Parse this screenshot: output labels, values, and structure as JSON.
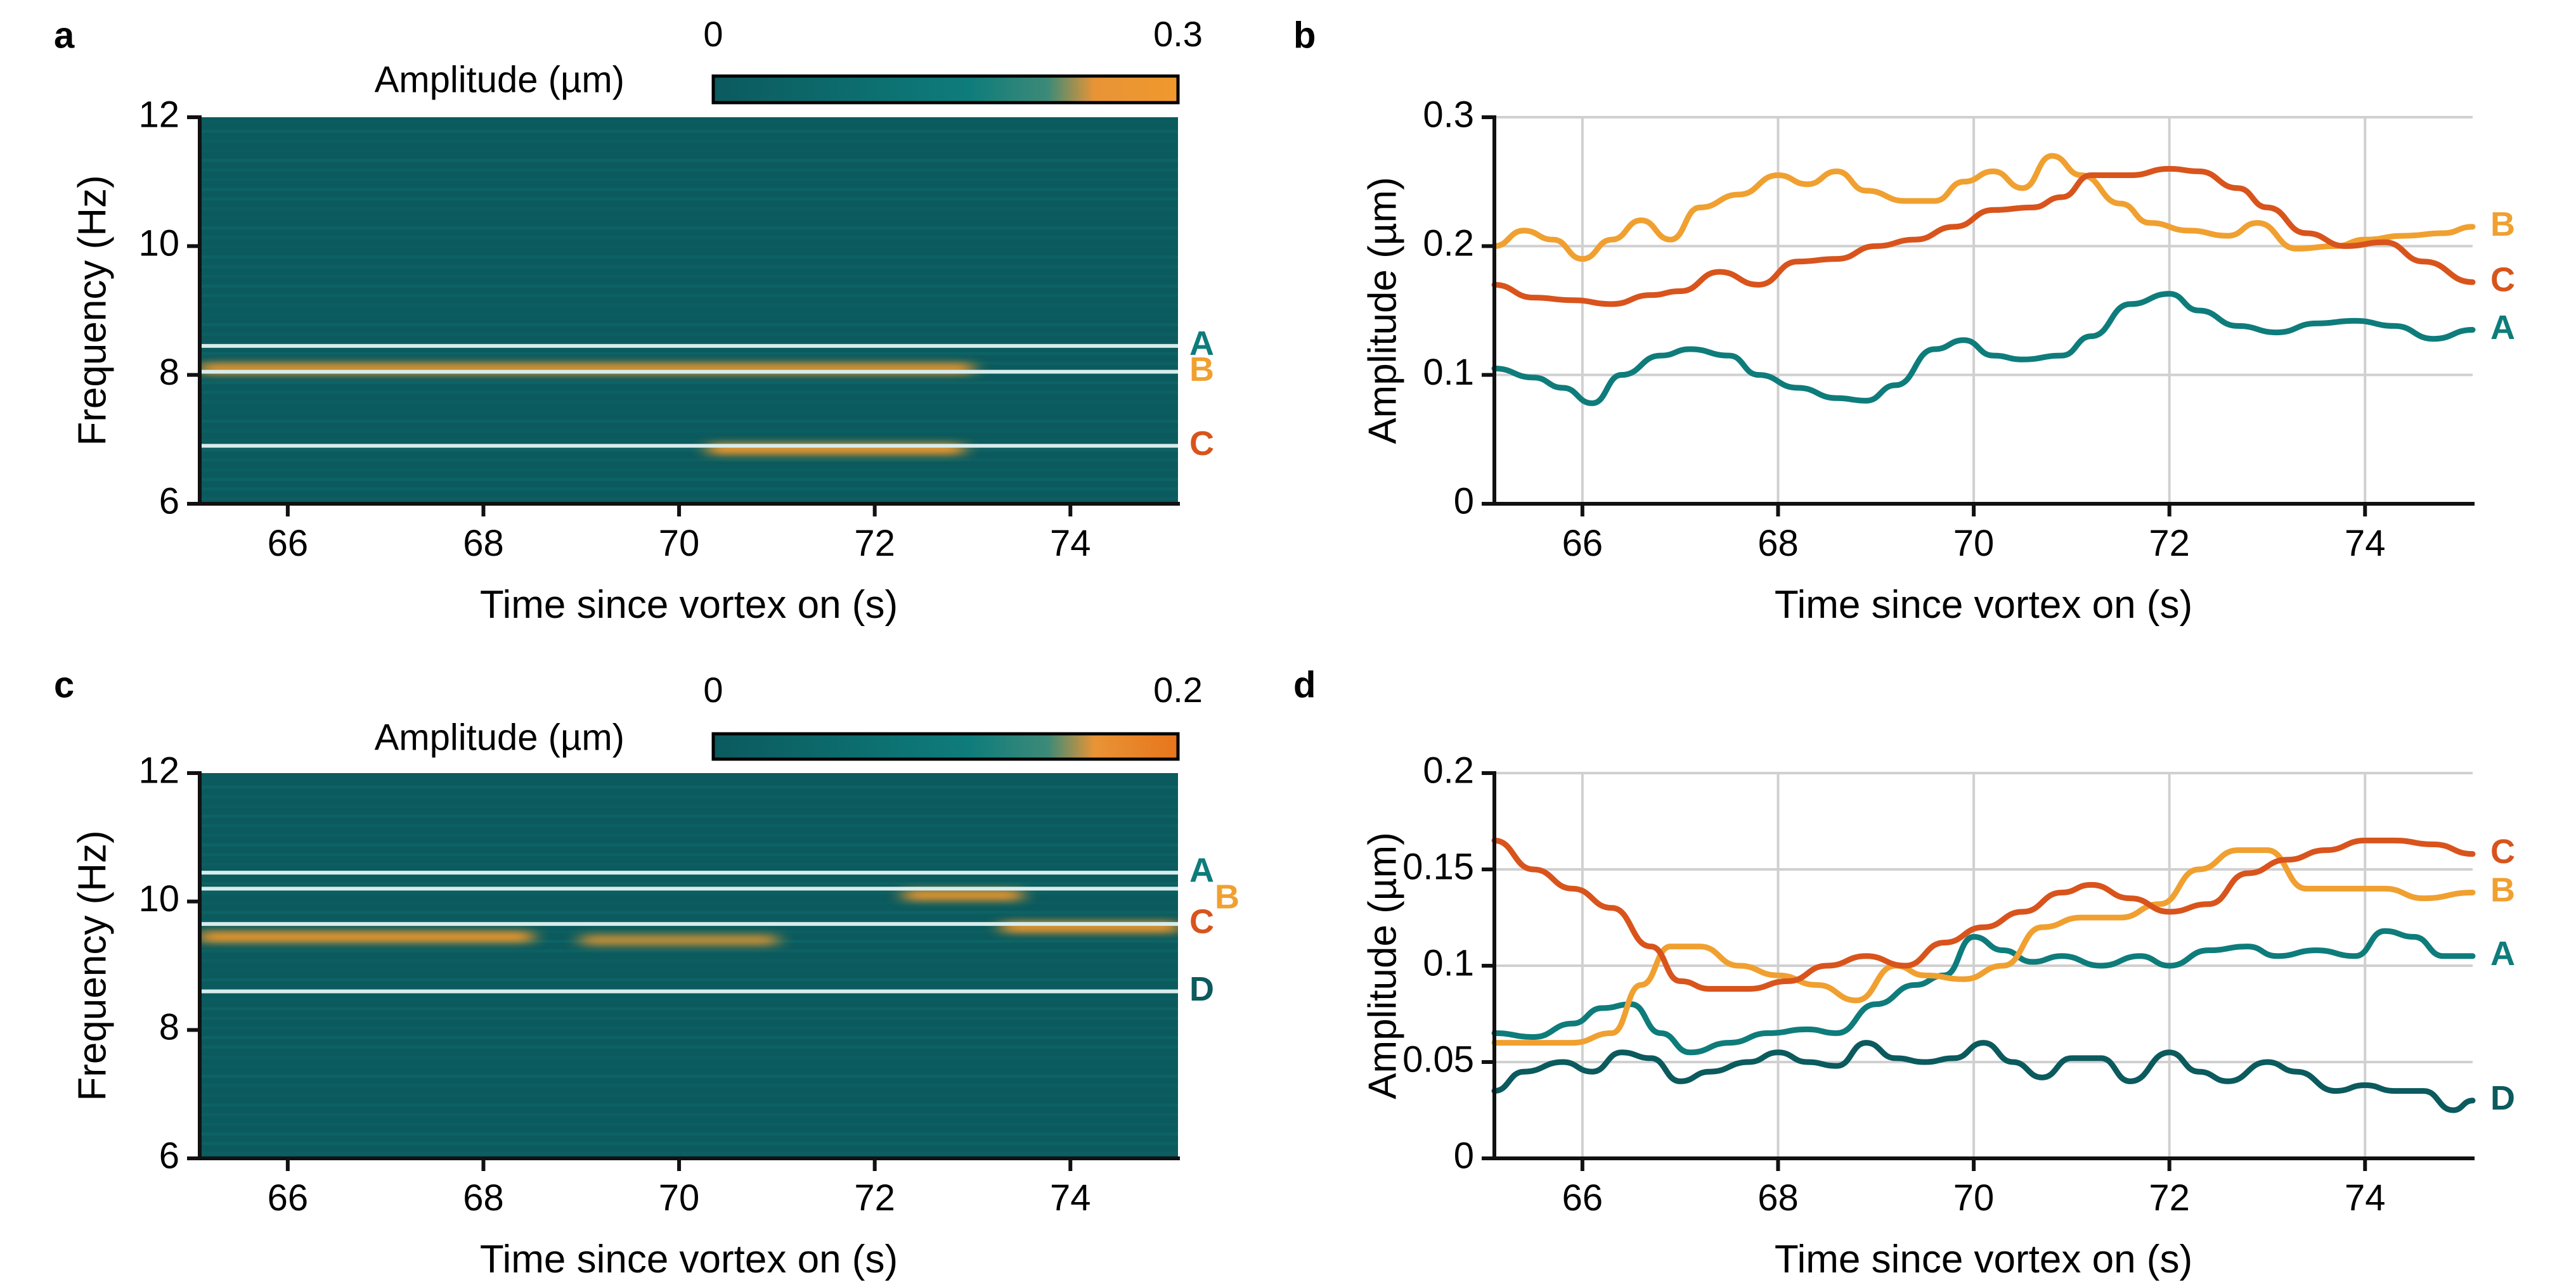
{
  "colors": {
    "teal": "#0e7c7b",
    "dark_teal": "#0b5a5e",
    "orange": "#f0a030",
    "red_orange": "#d8541c",
    "map_base": "#0b5a5e",
    "map_hot": "#f0982c",
    "map_hot2": "#e8751c",
    "grid": "#d0d0d0",
    "axis": "#111111",
    "line_marker": "#d8ecec"
  },
  "chart_data": [
    {
      "panel": "a",
      "type": "heatmap",
      "colorbar": {
        "label": "Amplitude (µm)",
        "min": 0,
        "max": 0.3,
        "min_label": "0",
        "max_label": "0.3"
      },
      "xlabel": "Time since vortex on (s)",
      "ylabel": "Frequency (Hz)",
      "xlim": [
        65.1,
        75.1
      ],
      "ylim": [
        6,
        12
      ],
      "xticks": [
        66,
        68,
        70,
        72,
        74
      ],
      "yticks": [
        6,
        8,
        10,
        12
      ],
      "markers": [
        {
          "label": "A",
          "freq": 8.45,
          "color": "teal"
        },
        {
          "label": "B",
          "freq": 8.05,
          "color": "orange"
        },
        {
          "label": "C",
          "freq": 6.9,
          "color": "red_orange"
        }
      ],
      "hot_bands": [
        {
          "freq": 8.1,
          "t_start": 65.1,
          "t_end": 73.0,
          "amplitude": 0.22
        },
        {
          "freq": 6.85,
          "t_start": 70.3,
          "t_end": 72.9,
          "amplitude": 0.25
        }
      ]
    },
    {
      "panel": "b",
      "type": "line",
      "xlabel": "Time since vortex on (s)",
      "ylabel": "Amplitude (µm)",
      "xlim": [
        65.1,
        75.1
      ],
      "ylim": [
        0,
        0.3
      ],
      "xticks": [
        66,
        68,
        70,
        72,
        74
      ],
      "yticks": [
        0,
        0.1,
        0.2,
        0.3
      ],
      "ytick_labels": [
        "0",
        "0.1",
        "0.2",
        "0.3"
      ],
      "series": [
        {
          "name": "A",
          "color": "teal",
          "x": [
            65.1,
            65.5,
            65.8,
            66.1,
            66.4,
            66.8,
            67.1,
            67.5,
            67.8,
            68.2,
            68.6,
            68.9,
            69.2,
            69.6,
            69.9,
            70.2,
            70.5,
            70.9,
            71.2,
            71.6,
            72.0,
            72.3,
            72.7,
            73.1,
            73.5,
            73.9,
            74.3,
            74.7,
            75.1
          ],
          "y": [
            0.105,
            0.098,
            0.09,
            0.078,
            0.1,
            0.115,
            0.12,
            0.115,
            0.1,
            0.09,
            0.082,
            0.08,
            0.092,
            0.12,
            0.127,
            0.115,
            0.112,
            0.115,
            0.13,
            0.155,
            0.163,
            0.15,
            0.138,
            0.133,
            0.14,
            0.142,
            0.138,
            0.128,
            0.135
          ]
        },
        {
          "name": "B",
          "color": "orange",
          "x": [
            65.1,
            65.4,
            65.7,
            66.0,
            66.3,
            66.6,
            66.9,
            67.2,
            67.6,
            68.0,
            68.3,
            68.6,
            68.9,
            69.3,
            69.6,
            69.9,
            70.2,
            70.5,
            70.8,
            71.1,
            71.5,
            71.8,
            72.2,
            72.6,
            72.9,
            73.3,
            73.7,
            74.0,
            74.4,
            74.8,
            75.1
          ],
          "y": [
            0.2,
            0.212,
            0.205,
            0.19,
            0.205,
            0.22,
            0.205,
            0.23,
            0.24,
            0.255,
            0.248,
            0.258,
            0.243,
            0.235,
            0.235,
            0.25,
            0.258,
            0.245,
            0.27,
            0.255,
            0.233,
            0.218,
            0.212,
            0.208,
            0.218,
            0.198,
            0.2,
            0.205,
            0.208,
            0.21,
            0.215
          ]
        },
        {
          "name": "C",
          "color": "red_orange",
          "x": [
            65.1,
            65.5,
            65.9,
            66.3,
            66.7,
            67.0,
            67.4,
            67.8,
            68.2,
            68.6,
            69.0,
            69.4,
            69.8,
            70.2,
            70.6,
            70.9,
            71.2,
            71.6,
            72.0,
            72.3,
            72.7,
            73.0,
            73.4,
            73.8,
            74.2,
            74.6,
            75.1
          ],
          "y": [
            0.17,
            0.16,
            0.158,
            0.155,
            0.162,
            0.165,
            0.18,
            0.17,
            0.188,
            0.19,
            0.2,
            0.205,
            0.215,
            0.228,
            0.23,
            0.238,
            0.255,
            0.255,
            0.26,
            0.258,
            0.245,
            0.23,
            0.21,
            0.2,
            0.203,
            0.188,
            0.172
          ]
        }
      ]
    },
    {
      "panel": "c",
      "type": "heatmap",
      "colorbar": {
        "label": "Amplitude (µm)",
        "min": 0,
        "max": 0.2,
        "min_label": "0",
        "max_label": "0.2"
      },
      "xlabel": "Time since vortex on (s)",
      "ylabel": "Frequency (Hz)",
      "xlim": [
        65.1,
        75.1
      ],
      "ylim": [
        6,
        12
      ],
      "xticks": [
        66,
        68,
        70,
        72,
        74
      ],
      "yticks": [
        6,
        8,
        10,
        12
      ],
      "markers": [
        {
          "label": "A",
          "freq": 10.45,
          "color": "teal"
        },
        {
          "label": "B",
          "freq": 10.2,
          "color": "orange"
        },
        {
          "label": "C",
          "freq": 9.65,
          "color": "red_orange"
        },
        {
          "label": "D",
          "freq": 8.6,
          "color": "dark_teal"
        }
      ],
      "hot_bands": [
        {
          "freq": 9.45,
          "t_start": 65.1,
          "t_end": 68.5,
          "amplitude": 0.16
        },
        {
          "freq": 9.4,
          "t_start": 69.0,
          "t_end": 71.0,
          "amplitude": 0.1
        },
        {
          "freq": 10.1,
          "t_start": 72.3,
          "t_end": 73.5,
          "amplitude": 0.15
        },
        {
          "freq": 9.6,
          "t_start": 73.3,
          "t_end": 75.1,
          "amplitude": 0.16
        }
      ]
    },
    {
      "panel": "d",
      "type": "line",
      "xlabel": "Time since vortex on (s)",
      "ylabel": "Amplitude (µm)",
      "xlim": [
        65.1,
        75.1
      ],
      "ylim": [
        0,
        0.2
      ],
      "xticks": [
        66,
        68,
        70,
        72,
        74
      ],
      "yticks": [
        0,
        0.05,
        0.1,
        0.15,
        0.2
      ],
      "ytick_labels": [
        "0",
        "0.05",
        "0.1",
        "0.15",
        "0.2"
      ],
      "series": [
        {
          "name": "A",
          "color": "teal",
          "x": [
            65.1,
            65.5,
            65.9,
            66.2,
            66.5,
            66.8,
            67.1,
            67.5,
            67.9,
            68.3,
            68.6,
            69.0,
            69.4,
            69.7,
            70.0,
            70.3,
            70.6,
            70.9,
            71.3,
            71.7,
            72.0,
            72.4,
            72.8,
            73.1,
            73.5,
            73.9,
            74.2,
            74.5,
            74.8,
            75.1
          ],
          "y": [
            0.065,
            0.063,
            0.07,
            0.078,
            0.08,
            0.065,
            0.055,
            0.06,
            0.065,
            0.067,
            0.065,
            0.08,
            0.09,
            0.095,
            0.115,
            0.108,
            0.102,
            0.105,
            0.1,
            0.105,
            0.1,
            0.108,
            0.11,
            0.105,
            0.108,
            0.105,
            0.118,
            0.115,
            0.105,
            0.105
          ]
        },
        {
          "name": "B",
          "color": "orange",
          "x": [
            65.1,
            65.5,
            65.9,
            66.3,
            66.6,
            66.9,
            67.2,
            67.6,
            68.0,
            68.4,
            68.8,
            69.2,
            69.5,
            69.9,
            70.3,
            70.7,
            71.1,
            71.5,
            71.9,
            72.3,
            72.7,
            73.0,
            73.4,
            73.8,
            74.2,
            74.6,
            75.1
          ],
          "y": [
            0.06,
            0.06,
            0.06,
            0.065,
            0.09,
            0.11,
            0.11,
            0.1,
            0.095,
            0.09,
            0.082,
            0.1,
            0.095,
            0.093,
            0.1,
            0.12,
            0.125,
            0.125,
            0.132,
            0.15,
            0.16,
            0.16,
            0.14,
            0.14,
            0.14,
            0.135,
            0.138
          ]
        },
        {
          "name": "C",
          "color": "red_orange",
          "x": [
            65.1,
            65.5,
            65.9,
            66.3,
            66.7,
            67.0,
            67.3,
            67.7,
            68.1,
            68.5,
            68.9,
            69.3,
            69.7,
            70.1,
            70.5,
            70.9,
            71.2,
            71.6,
            72.0,
            72.4,
            72.8,
            73.2,
            73.6,
            74.0,
            74.3,
            74.7,
            75.1
          ],
          "y": [
            0.165,
            0.15,
            0.14,
            0.13,
            0.11,
            0.092,
            0.088,
            0.088,
            0.092,
            0.1,
            0.105,
            0.1,
            0.112,
            0.12,
            0.128,
            0.138,
            0.142,
            0.135,
            0.128,
            0.132,
            0.148,
            0.155,
            0.16,
            0.165,
            0.165,
            0.163,
            0.158
          ]
        },
        {
          "name": "D",
          "color": "dark_teal",
          "x": [
            65.1,
            65.4,
            65.8,
            66.1,
            66.4,
            66.7,
            67.0,
            67.3,
            67.7,
            68.0,
            68.3,
            68.6,
            68.9,
            69.2,
            69.5,
            69.8,
            70.1,
            70.4,
            70.7,
            71.0,
            71.3,
            71.6,
            72.0,
            72.3,
            72.6,
            73.0,
            73.3,
            73.7,
            74.0,
            74.3,
            74.6,
            74.9,
            75.1
          ],
          "y": [
            0.035,
            0.045,
            0.05,
            0.045,
            0.055,
            0.052,
            0.04,
            0.045,
            0.05,
            0.055,
            0.05,
            0.048,
            0.06,
            0.052,
            0.05,
            0.052,
            0.06,
            0.05,
            0.042,
            0.052,
            0.052,
            0.04,
            0.055,
            0.045,
            0.04,
            0.05,
            0.045,
            0.035,
            0.038,
            0.035,
            0.035,
            0.025,
            0.03
          ]
        }
      ]
    }
  ]
}
